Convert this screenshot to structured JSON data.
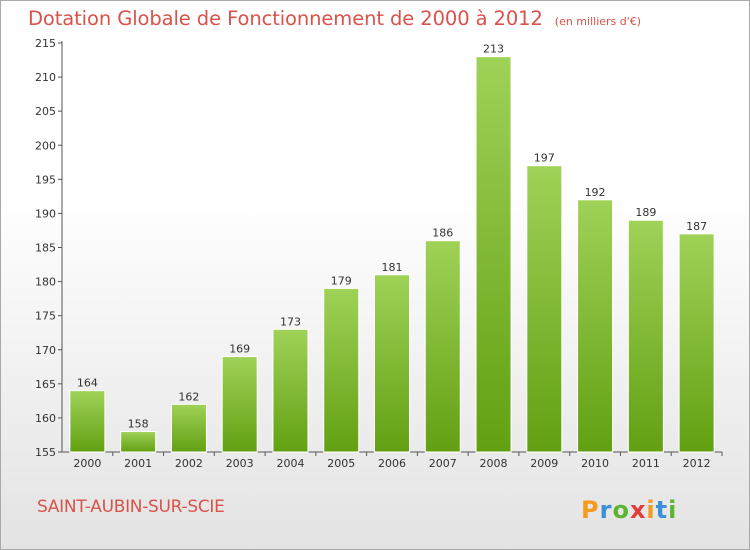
{
  "header": {
    "title": "Dotation Globale de Fonctionnement de 2000 à 2012",
    "subtitle": "(en milliers d'€)"
  },
  "footer": {
    "commune": "SAINT-AUBIN-SUR-SCIE",
    "logo_text": "Proxiti"
  },
  "colors": {
    "title": "#d9534a",
    "bar_light": "#9fd258",
    "bar_dark": "#62a012",
    "axis": "#555555",
    "grid_tick": "#999999"
  },
  "chart_data": {
    "type": "bar",
    "title": "Dotation Globale de Fonctionnement de 2000 à 2012",
    "subtitle": "(en milliers d'€)",
    "xlabel": "",
    "ylabel": "",
    "ylim": [
      155,
      215
    ],
    "yticks": [
      155,
      160,
      165,
      170,
      175,
      180,
      185,
      190,
      195,
      200,
      205,
      210,
      215
    ],
    "categories": [
      "2000",
      "2001",
      "2002",
      "2003",
      "2004",
      "2005",
      "2006",
      "2007",
      "2008",
      "2009",
      "2010",
      "2011",
      "2012"
    ],
    "values": [
      164,
      158,
      162,
      169,
      173,
      179,
      181,
      186,
      213,
      197,
      192,
      189,
      187
    ],
    "grid": false
  }
}
